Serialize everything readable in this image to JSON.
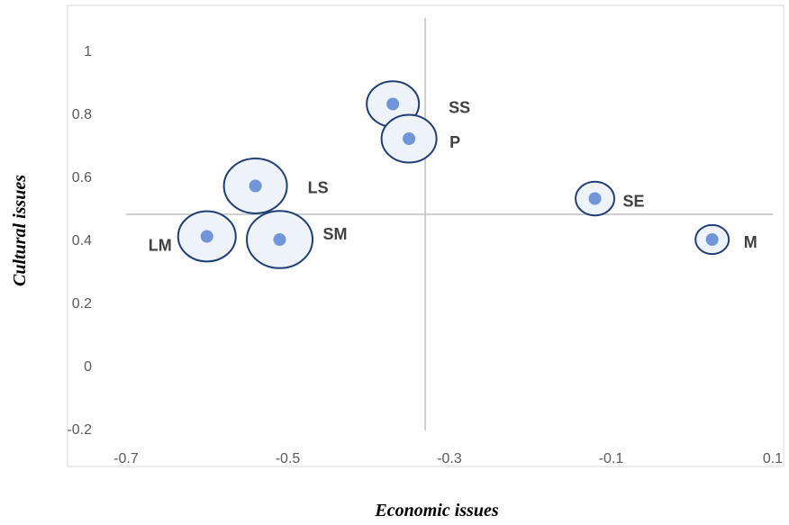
{
  "chart_data": {
    "type": "scatter",
    "title": "",
    "xlabel": "Economic issues",
    "ylabel": "Cultural issues",
    "xlim": [
      -0.7,
      0.1
    ],
    "ylim": [
      -0.2,
      1.0
    ],
    "x_ticks": [
      "-0.7",
      "-0.5",
      "-0.3",
      "-0.1",
      "0.1"
    ],
    "y_ticks": [
      "-0.2",
      "0",
      "0.2",
      "0.4",
      "0.6",
      "0.8",
      "1"
    ],
    "cross_lines": {
      "x": -0.33,
      "y": 0.48
    },
    "grid": false,
    "legend": "none",
    "colors": {
      "point": "#7195d8",
      "bubble_fill": "#eef2f9",
      "bubble_stroke": "#1f3f77",
      "axis_line": "#bfbfbf",
      "frame": "#d9d9d9"
    },
    "points": [
      {
        "label": "SS",
        "x": -0.37,
        "y": 0.83,
        "magnitude": 0.7
      },
      {
        "label": "P",
        "x": -0.35,
        "y": 0.72,
        "magnitude": 0.75
      },
      {
        "label": "LS",
        "x": -0.54,
        "y": 0.57,
        "magnitude": 0.9
      },
      {
        "label": "LM",
        "x": -0.6,
        "y": 0.41,
        "magnitude": 0.8
      },
      {
        "label": "SM",
        "x": -0.51,
        "y": 0.4,
        "magnitude": 0.95
      },
      {
        "label": "SE",
        "x": -0.12,
        "y": 0.53,
        "magnitude": 0.45
      },
      {
        "label": "M",
        "x": 0.025,
        "y": 0.4,
        "magnitude": 0.35
      }
    ]
  }
}
